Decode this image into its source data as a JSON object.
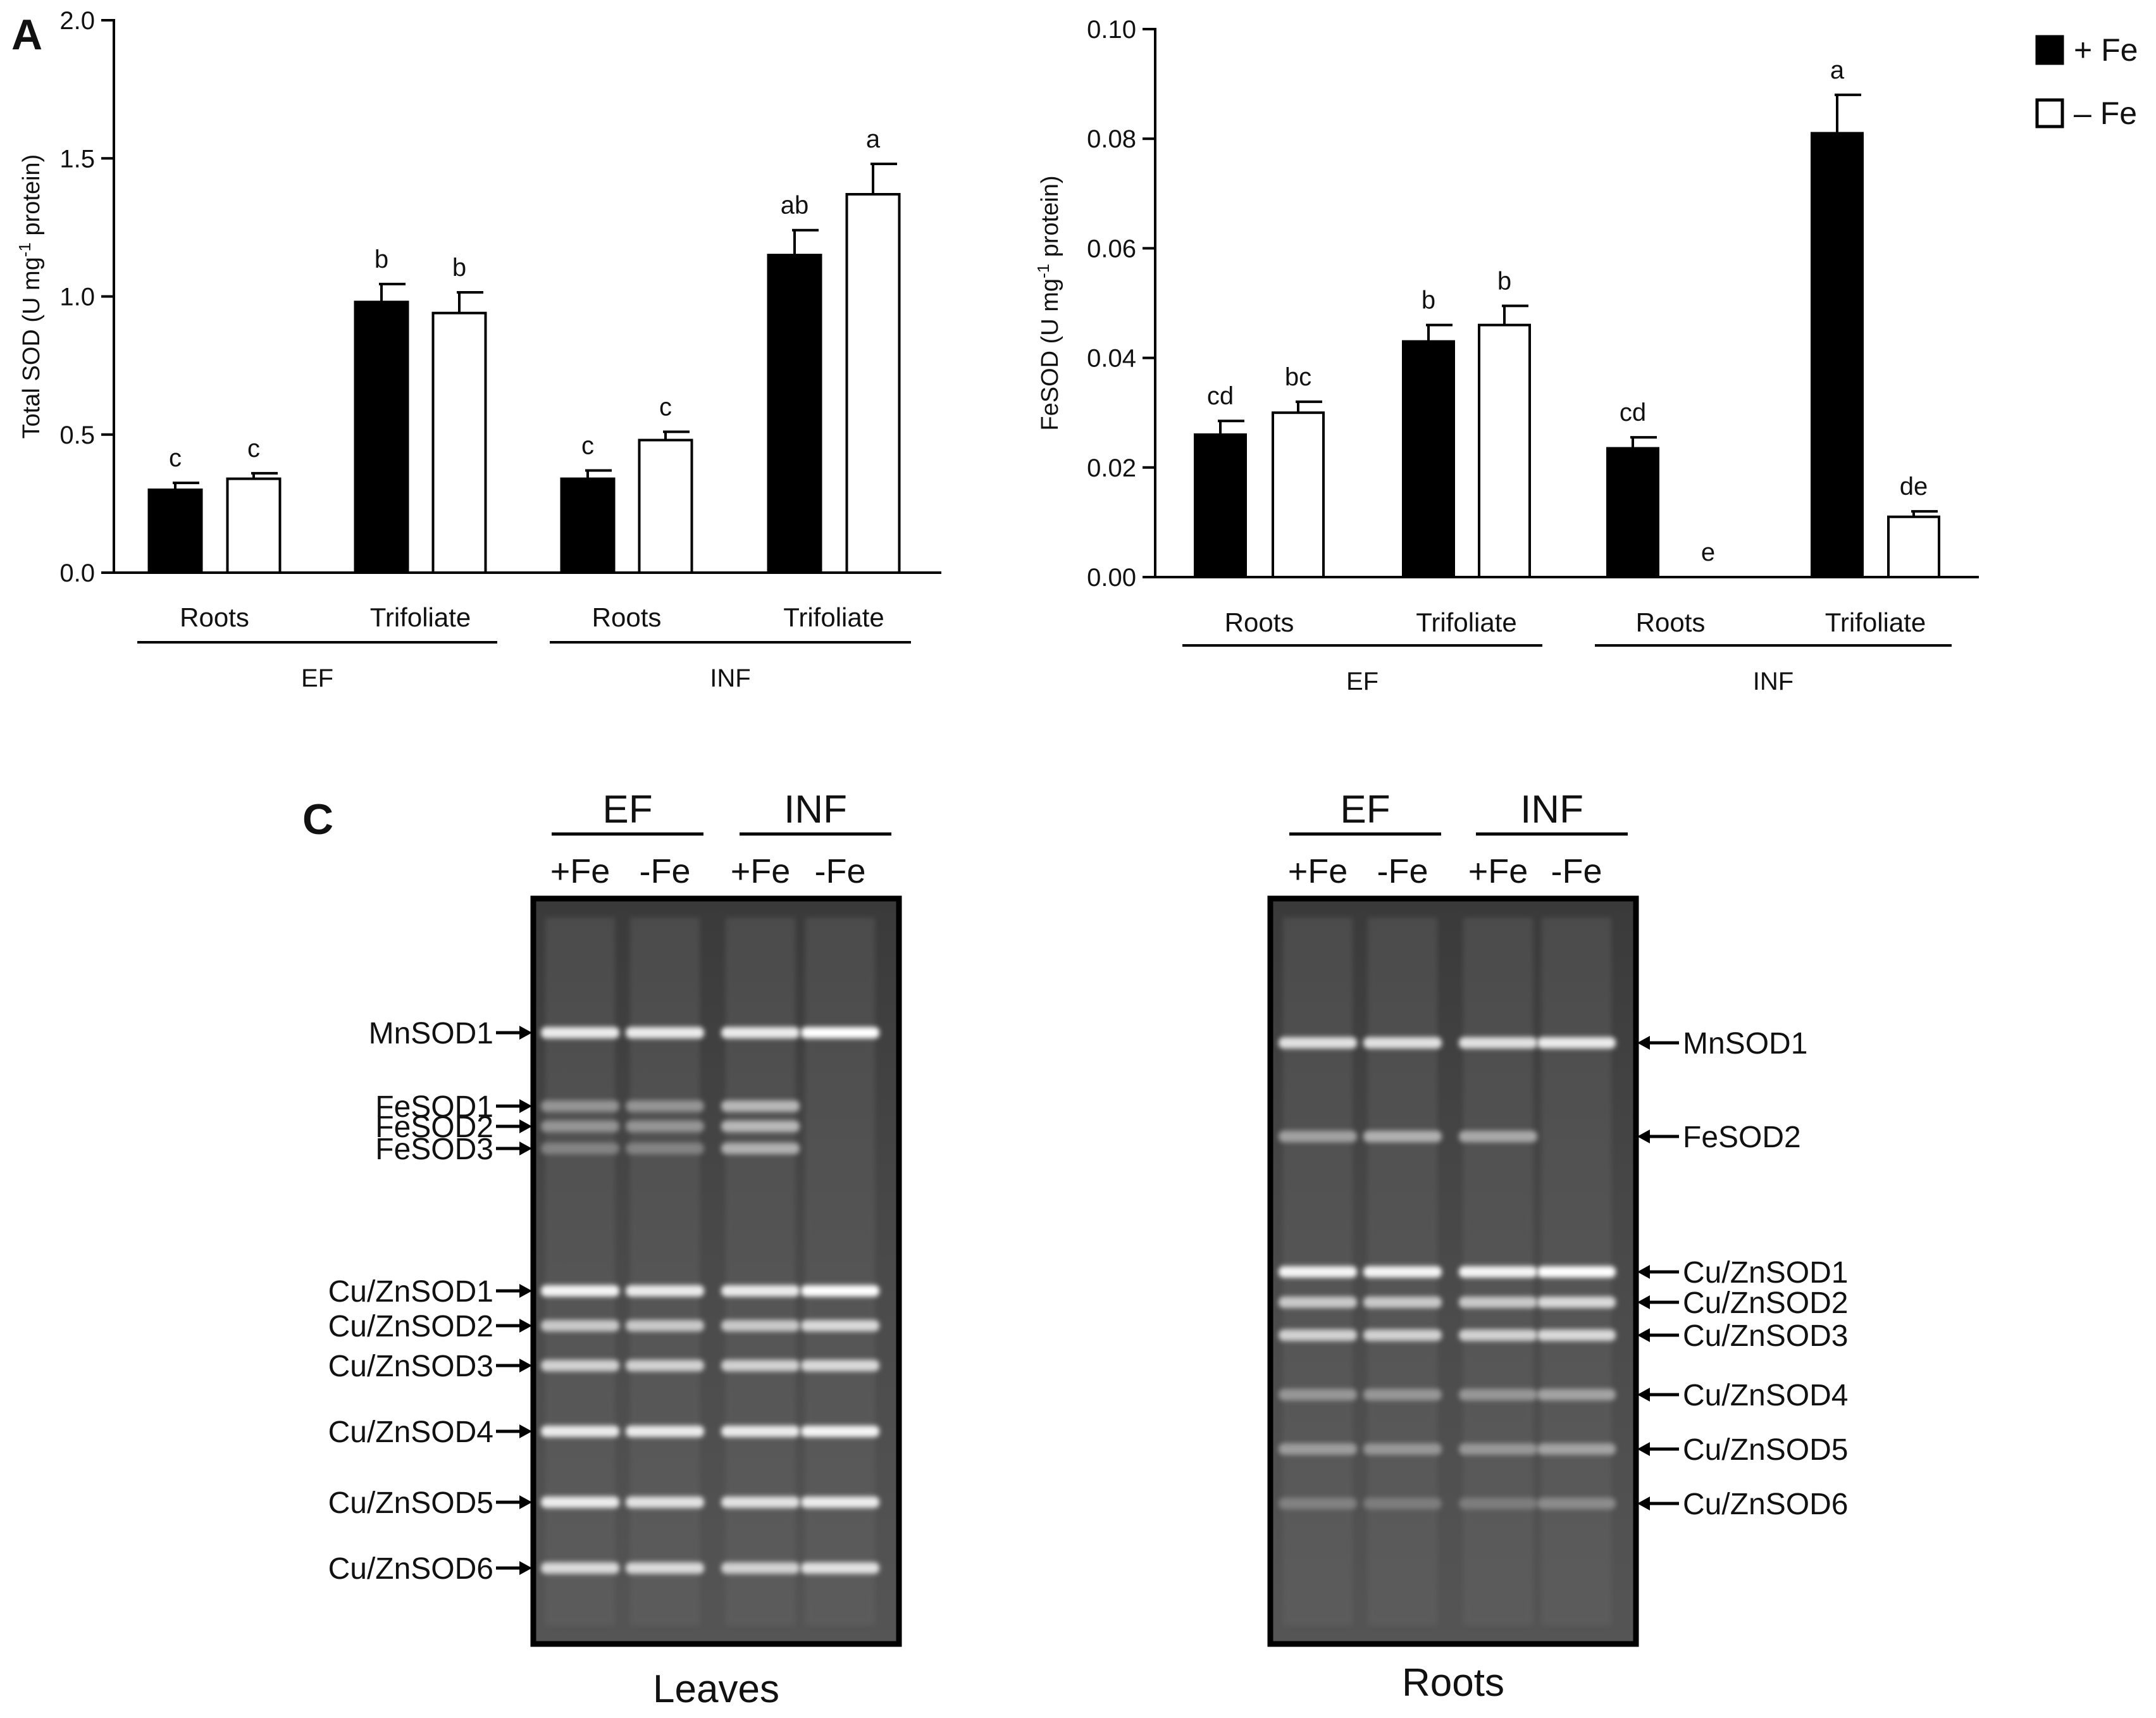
{
  "panel_labels": {
    "a": "A",
    "c": "C"
  },
  "legend": {
    "plus_fe": "+ Fe",
    "minus_fe": "– Fe",
    "colors": {
      "plus_fe": "#000000",
      "minus_fe": "#ffffff"
    }
  },
  "chart_data": [
    {
      "type": "bar",
      "ylabel": "Total SOD (U mg-1 protein)",
      "ylabel_main": "Total SOD (U mg",
      "ylabel_sup": "-1",
      "ylabel_tail": " protein)",
      "ylim": [
        0,
        2.0
      ],
      "yticks": [
        "0.0",
        "0.5",
        "1.0",
        "1.5",
        "2.0"
      ],
      "ytick_values": [
        0,
        0.5,
        1.0,
        1.5,
        2.0
      ],
      "categories": [
        "Roots",
        "Trifoliate",
        "Roots",
        "Trifoliate"
      ],
      "groups": [
        "EF",
        "INF"
      ],
      "series": [
        {
          "name": "+ Fe",
          "values": [
            0.3,
            0.98,
            0.34,
            1.15
          ],
          "errors": [
            0.025,
            0.065,
            0.03,
            0.09
          ],
          "letters": [
            "c",
            "b",
            "c",
            "ab"
          ]
        },
        {
          "name": "– Fe",
          "values": [
            0.34,
            0.94,
            0.48,
            1.37
          ],
          "errors": [
            0.02,
            0.075,
            0.03,
            0.11
          ],
          "letters": [
            "c",
            "b",
            "c",
            "a"
          ]
        }
      ]
    },
    {
      "type": "bar",
      "ylabel": "FeSOD (U mg-1 protein)",
      "ylabel_main": "FeSOD (U mg",
      "ylabel_sup": "-1",
      "ylabel_tail": " protein)",
      "ylim": [
        0,
        0.1
      ],
      "yticks": [
        "0.00",
        "0.02",
        "0.04",
        "0.06",
        "0.08",
        "0.10"
      ],
      "ytick_values": [
        0,
        0.02,
        0.04,
        0.06,
        0.08,
        0.1
      ],
      "categories": [
        "Roots",
        "Trifoliate",
        "Roots",
        "Trifoliate"
      ],
      "groups": [
        "EF",
        "INF"
      ],
      "series": [
        {
          "name": "+ Fe",
          "values": [
            0.026,
            0.043,
            0.0235,
            0.081
          ],
          "errors": [
            0.0025,
            0.003,
            0.002,
            0.007
          ],
          "letters": [
            "cd",
            "b",
            "cd",
            "a"
          ]
        },
        {
          "name": "– Fe",
          "values": [
            0.03,
            0.046,
            0.0,
            0.011
          ],
          "errors": [
            0.002,
            0.0035,
            0.0,
            0.001
          ],
          "letters": [
            "bc",
            "b",
            "e",
            "de"
          ]
        }
      ]
    }
  ],
  "gels": [
    {
      "caption": "Leaves",
      "groups": [
        "EF",
        "INF"
      ],
      "lanes": [
        "+Fe",
        "-Fe",
        "+Fe",
        "-Fe"
      ],
      "bands": [
        {
          "label": "MnSOD1",
          "intensity": [
            0.9,
            0.9,
            0.9,
            1.0
          ]
        },
        {
          "label": "FeSOD1",
          "intensity": [
            0.35,
            0.35,
            0.6,
            0.0
          ]
        },
        {
          "label": "FeSOD2",
          "intensity": [
            0.35,
            0.35,
            0.6,
            0.0
          ]
        },
        {
          "label": "FeSOD3",
          "intensity": [
            0.2,
            0.2,
            0.55,
            0.0
          ]
        },
        {
          "label": "Cu/ZnSOD1",
          "intensity": [
            0.95,
            0.9,
            0.9,
            1.0
          ]
        },
        {
          "label": "Cu/ZnSOD2",
          "intensity": [
            0.7,
            0.7,
            0.7,
            0.8
          ]
        },
        {
          "label": "Cu/ZnSOD3",
          "intensity": [
            0.75,
            0.75,
            0.75,
            0.8
          ]
        },
        {
          "label": "Cu/ZnSOD4",
          "intensity": [
            0.9,
            0.9,
            0.9,
            0.95
          ]
        },
        {
          "label": "Cu/ZnSOD5",
          "intensity": [
            0.9,
            0.85,
            0.85,
            0.9
          ]
        },
        {
          "label": "Cu/ZnSOD6",
          "intensity": [
            0.8,
            0.8,
            0.75,
            0.85
          ]
        }
      ]
    },
    {
      "caption": "Roots",
      "groups": [
        "EF",
        "INF"
      ],
      "lanes": [
        "+Fe",
        "-Fe",
        "+Fe",
        "-Fe"
      ],
      "bands": [
        {
          "label": "MnSOD1",
          "intensity": [
            0.85,
            0.85,
            0.85,
            0.9
          ]
        },
        {
          "label": "FeSOD2",
          "intensity": [
            0.45,
            0.55,
            0.5,
            0.0
          ]
        },
        {
          "label": "Cu/ZnSOD1",
          "intensity": [
            0.95,
            0.95,
            0.95,
            1.0
          ]
        },
        {
          "label": "Cu/ZnSOD2",
          "intensity": [
            0.7,
            0.7,
            0.7,
            0.8
          ]
        },
        {
          "label": "Cu/ZnSOD3",
          "intensity": [
            0.75,
            0.75,
            0.75,
            0.8
          ]
        },
        {
          "label": "Cu/ZnSOD4",
          "intensity": [
            0.35,
            0.35,
            0.35,
            0.45
          ]
        },
        {
          "label": "Cu/ZnSOD5",
          "intensity": [
            0.4,
            0.35,
            0.35,
            0.45
          ]
        },
        {
          "label": "Cu/ZnSOD6",
          "intensity": [
            0.15,
            0.1,
            0.1,
            0.25
          ]
        }
      ]
    }
  ]
}
